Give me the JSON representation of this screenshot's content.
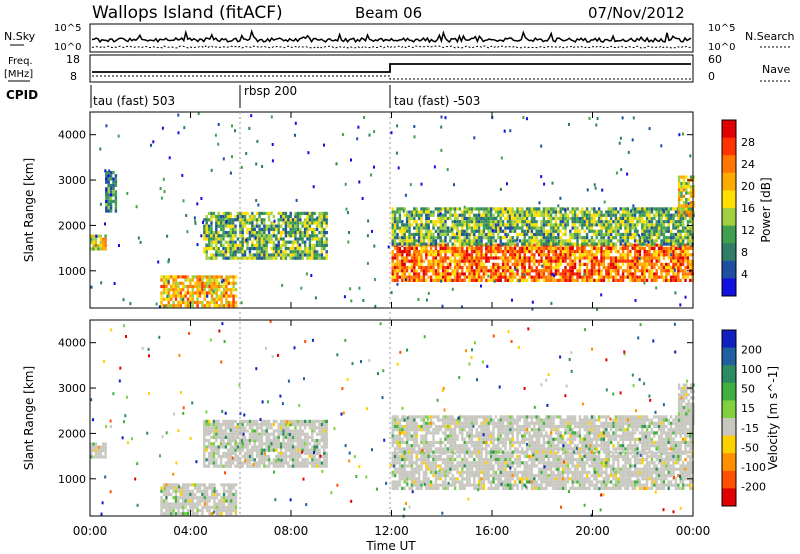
{
  "header": {
    "station": "Wallops Island (fitACF)",
    "beam": "Beam 06",
    "date": "07/Nov/2012"
  },
  "noise_panel": {
    "left_label": "N.Sky",
    "right_label": "N.Search",
    "left_ticks": [
      "10^5",
      "10^0"
    ],
    "right_ticks": [
      "10^5",
      "10^0"
    ]
  },
  "freq_panel": {
    "left_label_1": "Freq.",
    "left_label_2": "[MHz]",
    "right_label": "Nave",
    "left_ticks": [
      "18",
      "8"
    ],
    "right_ticks": [
      "60",
      "0"
    ]
  },
  "cpid_panel": {
    "label": "CPID",
    "segments": [
      {
        "label": "tau (fast) 503",
        "start": "00:00",
        "end": "06:00"
      },
      {
        "label": "rbsp 200",
        "start": "06:00",
        "end": "12:00"
      },
      {
        "label": "tau (fast) -503",
        "start": "12:00",
        "end": "24:00"
      }
    ]
  },
  "x_axis": {
    "title": "Time UT",
    "ticks": [
      "00:00",
      "04:00",
      "08:00",
      "12:00",
      "16:00",
      "20:00",
      "00:00"
    ]
  },
  "power_panel": {
    "ylabel": "Slant Range [km]",
    "yticks": [
      "4000",
      "3000",
      "2000",
      "1000"
    ],
    "colorbar_title": "Power [dB]",
    "colorbar_labels": [
      "28",
      "24",
      "20",
      "16",
      "12",
      "8",
      "4"
    ],
    "colors": [
      "#e00000",
      "#ff3300",
      "#ff7700",
      "#ffaa00",
      "#ffe000",
      "#a0d040",
      "#40a050",
      "#2e7e68",
      "#1f4fa0",
      "#1010e0"
    ]
  },
  "velocity_panel": {
    "ylabel": "Slant Range [km]",
    "yticks": [
      "4000",
      "3000",
      "2000",
      "1000"
    ],
    "colorbar_title": "Velocity [m s^-1]",
    "colorbar_labels": [
      "200",
      "100",
      "50",
      "15",
      "-15",
      "-50",
      "-100",
      "-200"
    ],
    "colors": [
      "#1020c0",
      "#2060a0",
      "#2e8a60",
      "#40b040",
      "#80d040",
      "#c8c8c0",
      "#ffd000",
      "#ff9000",
      "#ff5000",
      "#e00000"
    ]
  },
  "chart_data": [
    {
      "type": "heatmap",
      "title": "Power [dB]",
      "xlabel": "Time UT",
      "ylabel": "Slant Range [km]",
      "xlim": [
        0,
        24
      ],
      "ylim": [
        180,
        4500
      ],
      "color_range": [
        0,
        32
      ],
      "regions": [
        {
          "t": [
            0.0,
            0.6
          ],
          "r": [
            1500,
            1800
          ],
          "value": 18
        },
        {
          "t": [
            0.6,
            1.0
          ],
          "r": [
            2300,
            3200
          ],
          "value": 8
        },
        {
          "t": [
            2.8,
            5.8
          ],
          "r": [
            200,
            900
          ],
          "value": 20
        },
        {
          "t": [
            4.5,
            9.4
          ],
          "r": [
            1300,
            2300
          ],
          "value": 12
        },
        {
          "t": [
            12.0,
            24.0
          ],
          "r": [
            800,
            1600
          ],
          "value": 24
        },
        {
          "t": [
            12.0,
            24.0
          ],
          "r": [
            1600,
            2400
          ],
          "value": 12
        },
        {
          "t": [
            23.4,
            24.0
          ],
          "r": [
            2200,
            3100
          ],
          "value": 18
        }
      ]
    },
    {
      "type": "heatmap",
      "title": "Velocity [m s^-1]",
      "xlabel": "Time UT",
      "ylabel": "Slant Range [km]",
      "xlim": [
        0,
        24
      ],
      "ylim": [
        180,
        4500
      ],
      "color_range": [
        -200,
        200
      ],
      "regions": [
        {
          "t": [
            0.0,
            0.6
          ],
          "r": [
            1500,
            1800
          ],
          "value": 0
        },
        {
          "t": [
            2.8,
            5.8
          ],
          "r": [
            200,
            900
          ],
          "value": 0
        },
        {
          "t": [
            4.5,
            9.4
          ],
          "r": [
            1300,
            2300
          ],
          "value": 30
        },
        {
          "t": [
            12.0,
            24.0
          ],
          "r": [
            800,
            1600
          ],
          "value": 0
        },
        {
          "t": [
            12.0,
            24.0
          ],
          "r": [
            1600,
            2400
          ],
          "value": 0
        },
        {
          "t": [
            23.4,
            24.0
          ],
          "r": [
            2200,
            3100
          ],
          "value": 0
        }
      ]
    }
  ]
}
